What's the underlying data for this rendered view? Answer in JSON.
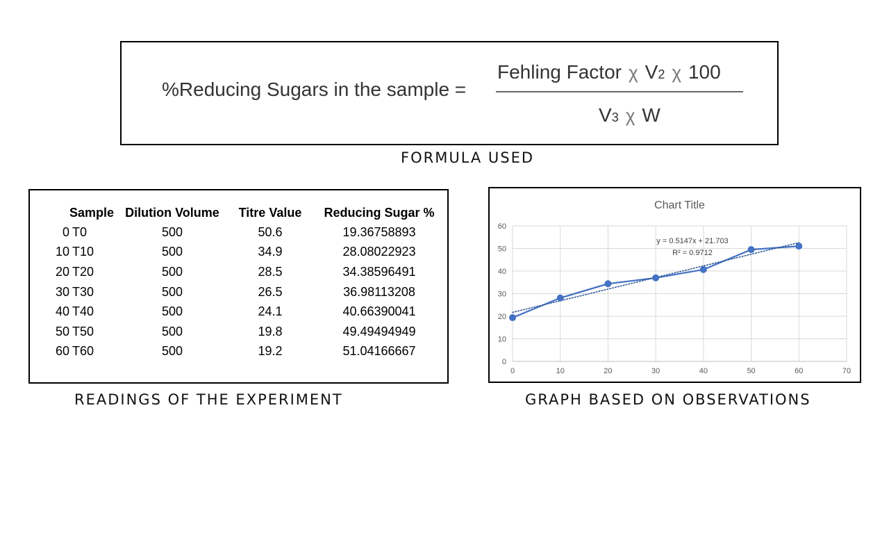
{
  "formula": {
    "lhs": "%Reducing Sugars in the sample =",
    "numerator": {
      "term1": "Fehling Factor",
      "op1": "χ",
      "term2": "V",
      "term2_sub": "2",
      "op2": "χ",
      "term3": "100"
    },
    "denominator": {
      "term1": "V",
      "term1_sub": "3",
      "op": "χ",
      "term2": "W"
    },
    "caption": "FORMULA USED"
  },
  "table": {
    "headers": [
      "Sample",
      "Dilution Volume",
      "Titre Value",
      "Reducing Sugar %"
    ],
    "rows": [
      {
        "time": "0",
        "label": "T0",
        "dilution": "500",
        "titre": "50.6",
        "sugar": "19.36758893"
      },
      {
        "time": "10",
        "label": "T10",
        "dilution": "500",
        "titre": "34.9",
        "sugar": "28.08022923"
      },
      {
        "time": "20",
        "label": "T20",
        "dilution": "500",
        "titre": "28.5",
        "sugar": "34.38596491"
      },
      {
        "time": "30",
        "label": "T30",
        "dilution": "500",
        "titre": "26.5",
        "sugar": "36.98113208"
      },
      {
        "time": "40",
        "label": "T40",
        "dilution": "500",
        "titre": "24.1",
        "sugar": "40.66390041"
      },
      {
        "time": "50",
        "label": "T50",
        "dilution": "500",
        "titre": "19.8",
        "sugar": "49.49494949"
      },
      {
        "time": "60",
        "label": "T60",
        "dilution": "500",
        "titre": "19.2",
        "sugar": "51.04166667"
      }
    ],
    "caption": "READINGS OF THE EXPERIMENT"
  },
  "chart_data": {
    "type": "scatter",
    "title": "Chart Title",
    "xlabel": "",
    "ylabel": "",
    "x": [
      0,
      10,
      20,
      30,
      40,
      50,
      60
    ],
    "series": [
      {
        "values": [
          19.36758893,
          28.08022923,
          34.38596491,
          36.98113208,
          40.66390041,
          49.49494949,
          51.04166667
        ],
        "color": "#4472c4",
        "style": "line-with-markers"
      }
    ],
    "trendline": {
      "slope": 0.5147,
      "intercept": 21.703,
      "style": "dotted",
      "color": "#2f5597"
    },
    "annotations": [
      "y = 0.5147x + 21.703",
      "R² = 0.9712"
    ],
    "xlim": [
      0,
      70
    ],
    "ylim": [
      0,
      60
    ],
    "xticks": [
      0,
      10,
      20,
      30,
      40,
      50,
      60,
      70
    ],
    "yticks": [
      0,
      10,
      20,
      30,
      40,
      50,
      60
    ],
    "grid": true,
    "caption": "GRAPH BASED ON OBSERVATIONS"
  }
}
